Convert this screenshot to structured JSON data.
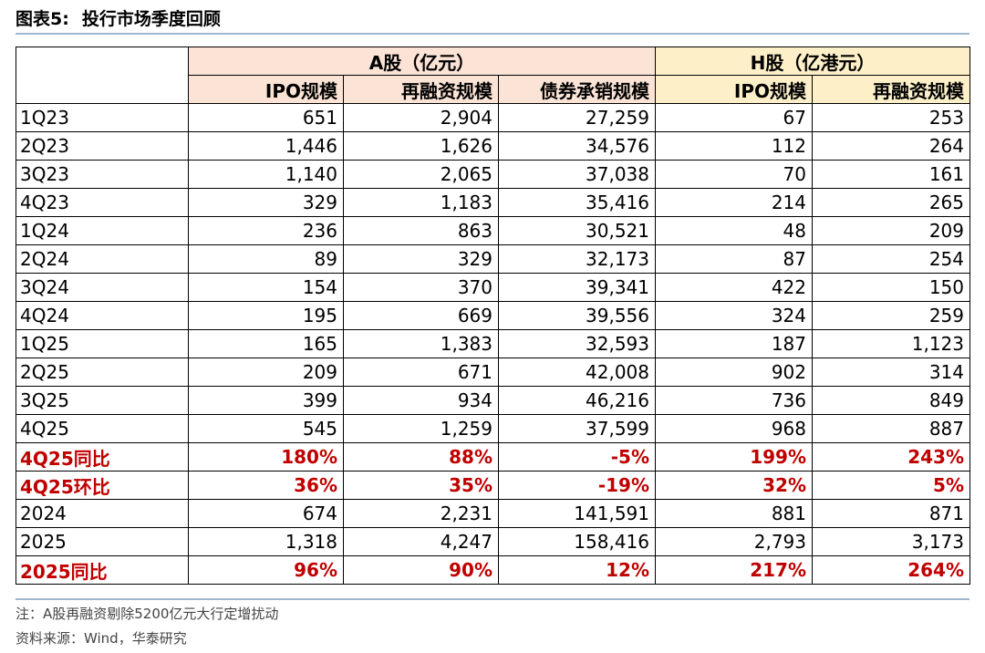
{
  "title": {
    "label": "图表5:",
    "text": "投行市场季度回顾"
  },
  "table": {
    "groups": [
      "A股（亿元）",
      "H股（亿港元）"
    ],
    "columns": [
      "IPO规模",
      "再融资规模",
      "债券承销规模",
      "IPO规模",
      "再融资规模"
    ],
    "rows": [
      {
        "label": "1Q23",
        "vals": [
          "651",
          "2,904",
          "27,259",
          "67",
          "253"
        ]
      },
      {
        "label": "2Q23",
        "vals": [
          "1,446",
          "1,626",
          "34,576",
          "112",
          "264"
        ]
      },
      {
        "label": "3Q23",
        "vals": [
          "1,140",
          "2,065",
          "37,038",
          "70",
          "161"
        ]
      },
      {
        "label": "4Q23",
        "vals": [
          "329",
          "1,183",
          "35,416",
          "214",
          "265"
        ]
      },
      {
        "label": "1Q24",
        "vals": [
          "236",
          "863",
          "30,521",
          "48",
          "209"
        ]
      },
      {
        "label": "2Q24",
        "vals": [
          "89",
          "329",
          "32,173",
          "87",
          "254"
        ]
      },
      {
        "label": "3Q24",
        "vals": [
          "154",
          "370",
          "39,341",
          "422",
          "150"
        ]
      },
      {
        "label": "4Q24",
        "vals": [
          "195",
          "669",
          "39,556",
          "324",
          "259"
        ]
      },
      {
        "label": "1Q25",
        "vals": [
          "165",
          "1,383",
          "32,593",
          "187",
          "1,123"
        ]
      },
      {
        "label": "2Q25",
        "vals": [
          "209",
          "671",
          "42,008",
          "902",
          "314"
        ]
      },
      {
        "label": "3Q25",
        "vals": [
          "399",
          "934",
          "46,216",
          "736",
          "849"
        ]
      },
      {
        "label": "4Q25",
        "vals": [
          "545",
          "1,259",
          "37,599",
          "968",
          "887"
        ]
      },
      {
        "label": "4Q25同比",
        "vals": [
          "180%",
          "88%",
          "-5%",
          "199%",
          "243%"
        ],
        "highlight": true
      },
      {
        "label": "4Q25环比",
        "vals": [
          "36%",
          "35%",
          "-19%",
          "32%",
          "5%"
        ],
        "highlight": true
      },
      {
        "label": "2024",
        "vals": [
          "674",
          "2,231",
          "141,591",
          "881",
          "871"
        ]
      },
      {
        "label": "2025",
        "vals": [
          "1,318",
          "4,247",
          "158,416",
          "2,793",
          "3,173"
        ]
      },
      {
        "label": "2025同比",
        "vals": [
          "96%",
          "90%",
          "12%",
          "217%",
          "264%"
        ],
        "highlight": true
      }
    ]
  },
  "notes": {
    "note": "注：A股再融资剔除5200亿元大行定增扰动",
    "source": "资料来源：Wind，华泰研究"
  },
  "colors": {
    "highlight": "#c00000",
    "a_header_bg": "#fbe3d6",
    "h_header_bg": "#fdf0c9",
    "rule": "#9fb6cf"
  }
}
